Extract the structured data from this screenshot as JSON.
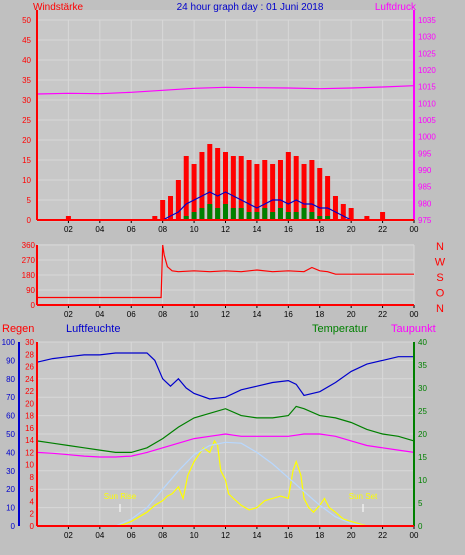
{
  "colors": {
    "background": "#c0c0c0",
    "plot_bg": "#c8c8c8",
    "grid": "#d8d8d8",
    "red": "#ff0000",
    "blue": "#0000cc",
    "green": "#008000",
    "magenta": "#ff00ff",
    "yellow": "#ffff00",
    "lightblue": "#b8d8ff"
  },
  "chart_data": [
    {
      "type": "bar",
      "title": "24 hour graph day : 01 Juni 2018",
      "left_label": "Windstärke",
      "right_label": "Luftdruck",
      "x_ticks": [
        "02",
        "04",
        "06",
        "08",
        "10",
        "12",
        "14",
        "16",
        "18",
        "20",
        "22",
        "00"
      ],
      "left_axis": {
        "ylim": [
          0,
          50
        ],
        "ticks": [
          "0",
          "5",
          "10",
          "15",
          "20",
          "25",
          "30",
          "35",
          "40",
          "45",
          "50"
        ]
      },
      "right_axis": {
        "ylim": [
          975,
          1035
        ],
        "ticks": [
          "975",
          "980",
          "985",
          "990",
          "995",
          "1000",
          "1005",
          "1010",
          "1015",
          "1020",
          "1025",
          "1030",
          "1035"
        ]
      },
      "series": [
        {
          "key": "wind_gust",
          "color": "red",
          "axis": "left",
          "style": "bars",
          "x": [
            0,
            1,
            2,
            3,
            4,
            5,
            6,
            7,
            7.5,
            8,
            8.5,
            9,
            9.5,
            10,
            10.5,
            11,
            11.5,
            12,
            12.5,
            13,
            13.5,
            14,
            14.5,
            15,
            15.5,
            16,
            16.5,
            17,
            17.5,
            18,
            18.5,
            19,
            19.5,
            20,
            21,
            22,
            23,
            24
          ],
          "values": [
            0,
            0,
            1,
            0,
            0,
            0,
            0,
            0,
            1,
            5,
            6,
            10,
            16,
            14,
            17,
            19,
            18,
            17,
            16,
            16,
            15,
            14,
            15,
            14,
            15,
            17,
            16,
            14,
            15,
            13,
            11,
            6,
            4,
            3,
            1,
            2,
            0,
            0
          ]
        },
        {
          "key": "wind_avg",
          "color": "blue",
          "axis": "left",
          "style": "line",
          "x": [
            0,
            7,
            8,
            8.5,
            9,
            9.5,
            10,
            10.5,
            11,
            11.5,
            12,
            12.5,
            13,
            13.5,
            14,
            14.5,
            15,
            15.5,
            16,
            16.5,
            17,
            17.5,
            18,
            18.5,
            19,
            19.5,
            20,
            24
          ],
          "values": [
            0,
            0,
            0,
            1,
            2,
            4,
            5,
            6,
            7,
            6,
            7,
            6,
            5,
            4,
            3,
            4,
            5,
            5,
            4,
            5,
            4,
            4,
            3,
            3,
            2,
            1,
            0,
            0
          ]
        },
        {
          "key": "wind_min",
          "color": "green",
          "axis": "left",
          "style": "bars",
          "x": [
            9,
            9.5,
            10,
            10.5,
            11,
            11.5,
            12,
            12.5,
            13,
            13.5,
            14,
            14.5,
            15,
            15.5,
            16,
            16.5,
            17,
            17.5,
            18,
            18.5,
            19
          ],
          "values": [
            0,
            1,
            2,
            3,
            4,
            3,
            4,
            3,
            3,
            2,
            2,
            3,
            2,
            3,
            2,
            2,
            3,
            2,
            1,
            1,
            0
          ]
        },
        {
          "key": "pressure",
          "color": "magenta",
          "axis": "right",
          "style": "line",
          "x": [
            0,
            2,
            4,
            6,
            8,
            10,
            12,
            14,
            16,
            18,
            20,
            22,
            24
          ],
          "values": [
            1012.8,
            1013.0,
            1012.9,
            1013.3,
            1013.9,
            1014.5,
            1014.8,
            1014.7,
            1014.6,
            1014.4,
            1014.6,
            1014.9,
            1015.3
          ]
        }
      ]
    },
    {
      "type": "line",
      "left_axis": {
        "ylim": [
          0,
          360
        ],
        "ticks": [
          "0",
          "90",
          "180",
          "270",
          "360"
        ]
      },
      "direction_labels": [
        "N",
        "W",
        "S",
        "O",
        "N"
      ],
      "x_ticks": [
        "02",
        "04",
        "06",
        "08",
        "10",
        "12",
        "14",
        "16",
        "18",
        "20",
        "22",
        "00"
      ],
      "series": [
        {
          "key": "wind_direction",
          "color": "red",
          "x": [
            0,
            7,
            7.9,
            8.0,
            8.1,
            8.3,
            8.6,
            9,
            10,
            11,
            12,
            13,
            14,
            15,
            16,
            17,
            17.5,
            18,
            18.5,
            19,
            20,
            22,
            24
          ],
          "values": [
            45,
            45,
            45,
            360,
            300,
            230,
            205,
            200,
            205,
            200,
            205,
            200,
            210,
            200,
            205,
            200,
            225,
            205,
            200,
            185,
            185,
            185,
            185
          ]
        }
      ]
    },
    {
      "type": "line",
      "labels": {
        "rain": "Regen",
        "humidity": "Luftfeuchte",
        "temperature": "Temperatur",
        "dewpoint": "Taupunkt"
      },
      "humidity_axis": {
        "ylim": [
          0,
          100
        ],
        "ticks": [
          "0",
          "10",
          "20",
          "30",
          "40",
          "50",
          "60",
          "70",
          "80",
          "90",
          "100"
        ]
      },
      "rain_axis": {
        "ylim": [
          0,
          30
        ],
        "ticks": [
          "0",
          "2",
          "4",
          "6",
          "8",
          "10",
          "12",
          "14",
          "16",
          "18",
          "20",
          "22",
          "24",
          "26",
          "28",
          "30"
        ]
      },
      "temp_axis": {
        "ylim": [
          0,
          40
        ],
        "ticks": [
          "0",
          "5",
          "10",
          "15",
          "20",
          "25",
          "30",
          "35",
          "40"
        ]
      },
      "x_ticks": [
        "02",
        "04",
        "06",
        "08",
        "10",
        "12",
        "14",
        "16",
        "18",
        "20",
        "22",
        "00"
      ],
      "annotations": {
        "sunrise": "Sun Rise",
        "sunset": "Sun Set",
        "sunrise_x": 5.2,
        "sunset_x": 21.0
      },
      "series": [
        {
          "key": "humidity",
          "color": "blue",
          "axis": "humidity",
          "x": [
            0,
            1,
            2,
            3,
            4,
            5,
            6,
            7,
            7.5,
            8,
            8.5,
            9,
            9.5,
            10,
            11,
            12,
            13,
            14,
            15,
            16,
            16.5,
            17,
            18,
            19,
            20,
            21,
            22,
            23,
            24
          ],
          "values": [
            89,
            91,
            92,
            93,
            93,
            94,
            94,
            94,
            90,
            80,
            76,
            80,
            75,
            72,
            69,
            70,
            74,
            76,
            78,
            79,
            77,
            71,
            73,
            78,
            84,
            88,
            90,
            92,
            92
          ]
        },
        {
          "key": "temperature",
          "color": "green",
          "axis": "temp",
          "x": [
            0,
            1,
            2,
            3,
            4,
            5,
            6,
            7,
            8,
            9,
            10,
            11,
            12,
            13,
            14,
            15,
            16,
            16.5,
            17,
            18,
            19,
            20,
            21,
            22,
            23,
            24
          ],
          "values": [
            18.5,
            18,
            17.5,
            17,
            16.5,
            16,
            16,
            17,
            19,
            21.5,
            23.5,
            24.5,
            25.5,
            24,
            23.5,
            23.5,
            24,
            26,
            25.5,
            24,
            23.5,
            22.5,
            21,
            20,
            19.5,
            18.5
          ]
        },
        {
          "key": "dewpoint",
          "color": "magenta",
          "axis": "temp",
          "x": [
            0,
            1,
            2,
            3,
            4,
            5,
            6,
            7,
            8,
            9,
            10,
            11,
            12,
            13,
            14,
            15,
            16,
            17,
            18,
            19,
            20,
            21,
            22,
            23,
            24
          ],
          "values": [
            16,
            15.8,
            15.5,
            15.2,
            15,
            15,
            15.2,
            16,
            17,
            18,
            19,
            19.5,
            20,
            19.5,
            19.5,
            19.5,
            19.5,
            20,
            20,
            19.5,
            18.5,
            17.5,
            17,
            16.5,
            16
          ]
        },
        {
          "key": "solar",
          "color": "yellow",
          "axis": "temp",
          "x": [
            0,
            5,
            5.5,
            6,
            6.5,
            7,
            7.5,
            8,
            8.3,
            8.6,
            9,
            9.3,
            9.6,
            10,
            10.3,
            10.6,
            11,
            11.3,
            11.5,
            11.7,
            12,
            12.2,
            12.5,
            13,
            13.5,
            14,
            14.5,
            15,
            15.5,
            16,
            16.3,
            16.5,
            16.8,
            17,
            17.3,
            17.6,
            18,
            18.3,
            18.6,
            19,
            19.5,
            20,
            20.5,
            21,
            24
          ],
          "values": [
            0,
            0,
            0.3,
            1,
            2,
            3,
            4.5,
            5.5,
            6.5,
            7,
            8.5,
            6,
            11,
            14,
            15.5,
            17,
            16,
            18.5,
            17.5,
            12,
            10,
            7,
            6,
            4.5,
            3.5,
            4,
            5.5,
            6,
            6.5,
            6,
            12,
            14,
            11,
            6,
            4,
            3,
            4.5,
            6,
            4,
            3,
            1.5,
            1,
            0.5,
            0,
            0
          ]
        },
        {
          "key": "solar_theoretical",
          "color": "lightblue",
          "axis": "temp",
          "x": [
            5,
            6,
            7,
            8,
            9,
            10,
            11,
            12,
            13,
            14,
            15,
            16,
            17,
            18,
            19,
            20,
            21
          ],
          "values": [
            0,
            1.5,
            4,
            8,
            12,
            15.5,
            17.5,
            18.2,
            18,
            16,
            13.5,
            10.5,
            7.5,
            4.5,
            2,
            0.5,
            0
          ]
        },
        {
          "key": "rain",
          "color": "red",
          "axis": "rain",
          "x": [
            0,
            24
          ],
          "values": [
            0,
            0
          ]
        }
      ]
    }
  ]
}
